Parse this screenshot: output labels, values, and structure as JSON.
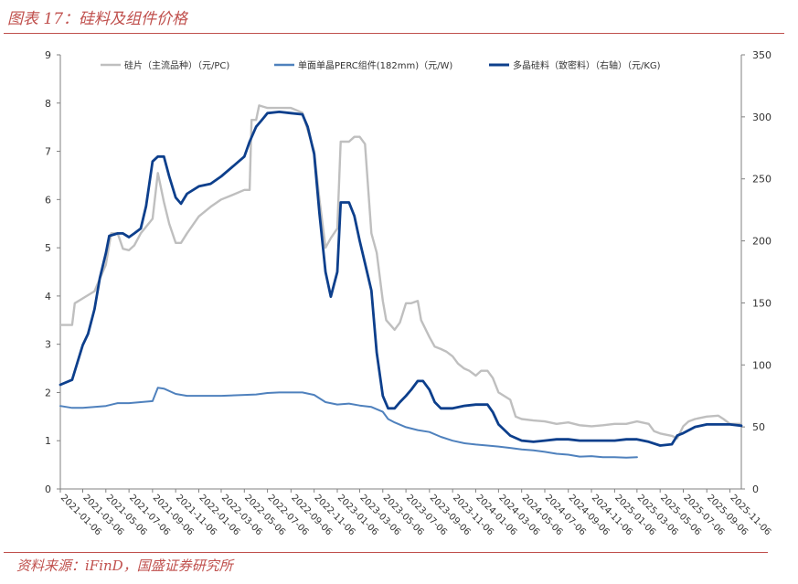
{
  "page": {
    "title": "图表 17：硅料及组件价格",
    "source": "资料来源：iFinD，国盛证券研究所"
  },
  "chart_data": {
    "type": "line",
    "y_left_ticks": [
      "0",
      "1",
      "2",
      "3",
      "4",
      "5",
      "6",
      "7",
      "8",
      "9"
    ],
    "y_right_ticks": [
      "0",
      "50",
      "100",
      "150",
      "200",
      "250",
      "300",
      "350"
    ],
    "y_left_range": [
      0,
      9
    ],
    "y_right_range": [
      0,
      350
    ],
    "x_range": [
      "2021-01-06",
      "2025-12-06"
    ],
    "x_ticks": [
      "2021-01-06",
      "2021-03-06",
      "2021-05-06",
      "2021-07-06",
      "2021-09-06",
      "2021-11-06",
      "2022-01-06",
      "2022-03-06",
      "2022-05-06",
      "2022-07-06",
      "2022-09-06",
      "2022-11-06",
      "2023-01-06",
      "2023-03-06",
      "2023-05-06",
      "2023-07-06",
      "2023-09-06",
      "2023-11-06",
      "2024-01-06",
      "2024-03-06",
      "2024-05-06",
      "2024-07-06",
      "2024-09-06",
      "2024-11-06",
      "2025-01-06",
      "2025-03-06",
      "2025-05-06",
      "2025-07-06",
      "2025-09-06",
      "2025-11-06"
    ],
    "legend_position": "top",
    "series": [
      {
        "name": "硅片（主流品种）（元/PC)",
        "axis": "left",
        "color": "#bfbfbf",
        "points": [
          [
            "2021-01-06",
            3.4
          ],
          [
            "2021-02-06",
            3.4
          ],
          [
            "2021-02-13",
            3.85
          ],
          [
            "2021-03-06",
            3.95
          ],
          [
            "2021-04-06",
            4.1
          ],
          [
            "2021-05-06",
            4.65
          ],
          [
            "2021-05-20",
            5.3
          ],
          [
            "2021-06-06",
            5.3
          ],
          [
            "2021-06-20",
            4.98
          ],
          [
            "2021-07-06",
            4.95
          ],
          [
            "2021-07-20",
            5.05
          ],
          [
            "2021-08-06",
            5.3
          ],
          [
            "2021-09-06",
            5.6
          ],
          [
            "2021-09-20",
            6.55
          ],
          [
            "2021-10-06",
            5.95
          ],
          [
            "2021-10-20",
            5.5
          ],
          [
            "2021-11-06",
            5.1
          ],
          [
            "2021-11-20",
            5.1
          ],
          [
            "2021-12-06",
            5.3
          ],
          [
            "2022-01-06",
            5.65
          ],
          [
            "2022-02-06",
            5.85
          ],
          [
            "2022-03-06",
            6.0
          ],
          [
            "2022-04-06",
            6.1
          ],
          [
            "2022-05-06",
            6.2
          ],
          [
            "2022-05-20",
            6.2
          ],
          [
            "2022-05-25",
            7.65
          ],
          [
            "2022-06-06",
            7.65
          ],
          [
            "2022-06-14",
            7.95
          ],
          [
            "2022-07-06",
            7.9
          ],
          [
            "2022-08-06",
            7.9
          ],
          [
            "2022-09-06",
            7.9
          ],
          [
            "2022-10-06",
            7.8
          ],
          [
            "2022-11-06",
            7.0
          ],
          [
            "2022-11-20",
            6.0
          ],
          [
            "2022-12-06",
            5.0
          ],
          [
            "2022-12-20",
            5.2
          ],
          [
            "2023-01-06",
            5.4
          ],
          [
            "2023-01-15",
            7.2
          ],
          [
            "2023-02-06",
            7.2
          ],
          [
            "2023-02-20",
            7.3
          ],
          [
            "2023-03-06",
            7.3
          ],
          [
            "2023-03-20",
            7.15
          ],
          [
            "2023-04-06",
            5.3
          ],
          [
            "2023-04-20",
            4.9
          ],
          [
            "2023-05-06",
            3.9
          ],
          [
            "2023-05-15",
            3.5
          ],
          [
            "2023-06-06",
            3.3
          ],
          [
            "2023-06-20",
            3.45
          ],
          [
            "2023-07-06",
            3.85
          ],
          [
            "2023-07-20",
            3.85
          ],
          [
            "2023-08-06",
            3.9
          ],
          [
            "2023-08-15",
            3.5
          ],
          [
            "2023-09-06",
            3.15
          ],
          [
            "2023-09-20",
            2.95
          ],
          [
            "2023-10-06",
            2.9
          ],
          [
            "2023-10-20",
            2.85
          ],
          [
            "2023-11-06",
            2.75
          ],
          [
            "2023-11-20",
            2.6
          ],
          [
            "2023-12-06",
            2.5
          ],
          [
            "2023-12-20",
            2.45
          ],
          [
            "2024-01-06",
            2.35
          ],
          [
            "2024-01-20",
            2.45
          ],
          [
            "2024-02-06",
            2.45
          ],
          [
            "2024-02-20",
            2.3
          ],
          [
            "2024-03-06",
            2.0
          ],
          [
            "2024-04-06",
            1.85
          ],
          [
            "2024-04-20",
            1.5
          ],
          [
            "2024-05-06",
            1.45
          ],
          [
            "2024-06-06",
            1.42
          ],
          [
            "2024-07-06",
            1.4
          ],
          [
            "2024-08-06",
            1.35
          ],
          [
            "2024-09-06",
            1.38
          ],
          [
            "2024-10-06",
            1.32
          ],
          [
            "2024-11-06",
            1.3
          ],
          [
            "2024-12-06",
            1.32
          ],
          [
            "2025-01-06",
            1.35
          ],
          [
            "2025-02-06",
            1.35
          ],
          [
            "2025-03-06",
            1.4
          ],
          [
            "2025-04-06",
            1.35
          ],
          [
            "2025-04-20",
            1.2
          ],
          [
            "2025-05-06",
            1.15
          ],
          [
            "2025-06-06",
            1.1
          ],
          [
            "2025-06-20",
            1.05
          ],
          [
            "2025-07-06",
            1.3
          ],
          [
            "2025-07-20",
            1.4
          ],
          [
            "2025-08-06",
            1.45
          ],
          [
            "2025-09-06",
            1.5
          ],
          [
            "2025-10-06",
            1.52
          ],
          [
            "2025-10-20",
            1.45
          ],
          [
            "2025-11-06",
            1.35
          ],
          [
            "2025-12-06",
            1.35
          ]
        ]
      },
      {
        "name": "单面单晶PERC组件(182mm)（元/W)",
        "axis": "left",
        "color": "#4f81bd",
        "points": [
          [
            "2021-01-06",
            1.72
          ],
          [
            "2021-02-06",
            1.68
          ],
          [
            "2021-03-06",
            1.68
          ],
          [
            "2021-04-06",
            1.7
          ],
          [
            "2021-05-06",
            1.72
          ],
          [
            "2021-06-06",
            1.78
          ],
          [
            "2021-07-06",
            1.78
          ],
          [
            "2021-08-06",
            1.8
          ],
          [
            "2021-09-06",
            1.82
          ],
          [
            "2021-09-20",
            2.1
          ],
          [
            "2021-10-06",
            2.08
          ],
          [
            "2021-11-06",
            1.97
          ],
          [
            "2021-12-06",
            1.93
          ],
          [
            "2022-01-06",
            1.93
          ],
          [
            "2022-03-06",
            1.93
          ],
          [
            "2022-05-06",
            1.95
          ],
          [
            "2022-06-06",
            1.96
          ],
          [
            "2022-07-06",
            1.99
          ],
          [
            "2022-08-06",
            2.0
          ],
          [
            "2022-09-06",
            2.0
          ],
          [
            "2022-10-06",
            2.0
          ],
          [
            "2022-11-06",
            1.95
          ],
          [
            "2022-12-06",
            1.8
          ],
          [
            "2023-01-06",
            1.75
          ],
          [
            "2023-02-06",
            1.77
          ],
          [
            "2023-03-06",
            1.73
          ],
          [
            "2023-04-06",
            1.7
          ],
          [
            "2023-05-06",
            1.6
          ],
          [
            "2023-05-20",
            1.45
          ],
          [
            "2023-06-06",
            1.38
          ],
          [
            "2023-07-06",
            1.28
          ],
          [
            "2023-08-06",
            1.22
          ],
          [
            "2023-09-06",
            1.18
          ],
          [
            "2023-10-06",
            1.08
          ],
          [
            "2023-11-06",
            1.0
          ],
          [
            "2023-12-06",
            0.95
          ],
          [
            "2024-01-06",
            0.92
          ],
          [
            "2024-02-06",
            0.9
          ],
          [
            "2024-03-06",
            0.88
          ],
          [
            "2024-04-06",
            0.85
          ],
          [
            "2024-05-06",
            0.82
          ],
          [
            "2024-06-06",
            0.8
          ],
          [
            "2024-07-06",
            0.77
          ],
          [
            "2024-08-06",
            0.73
          ],
          [
            "2024-09-06",
            0.71
          ],
          [
            "2024-10-06",
            0.67
          ],
          [
            "2024-11-06",
            0.68
          ],
          [
            "2024-12-06",
            0.66
          ],
          [
            "2025-01-06",
            0.66
          ],
          [
            "2025-02-06",
            0.65
          ],
          [
            "2025-03-06",
            0.66
          ]
        ]
      },
      {
        "name": "多晶硅料（致密料）（右轴）（元/KG)",
        "axis": "right",
        "color": "#0d3f8c",
        "points": [
          [
            "2021-01-06",
            84
          ],
          [
            "2021-02-06",
            88
          ],
          [
            "2021-02-20",
            102
          ],
          [
            "2021-03-06",
            116
          ],
          [
            "2021-03-20",
            125
          ],
          [
            "2021-04-06",
            145
          ],
          [
            "2021-04-20",
            170
          ],
          [
            "2021-05-06",
            190
          ],
          [
            "2021-05-15",
            204
          ],
          [
            "2021-06-06",
            206
          ],
          [
            "2021-06-20",
            206
          ],
          [
            "2021-07-06",
            203
          ],
          [
            "2021-07-20",
            206
          ],
          [
            "2021-08-06",
            210
          ],
          [
            "2021-08-20",
            228
          ],
          [
            "2021-09-06",
            264
          ],
          [
            "2021-09-20",
            268
          ],
          [
            "2021-10-06",
            268
          ],
          [
            "2021-10-20",
            252
          ],
          [
            "2021-11-06",
            235
          ],
          [
            "2021-11-20",
            230
          ],
          [
            "2021-12-06",
            238
          ],
          [
            "2022-01-06",
            244
          ],
          [
            "2022-02-06",
            246
          ],
          [
            "2022-03-06",
            252
          ],
          [
            "2022-04-06",
            260
          ],
          [
            "2022-05-06",
            268
          ],
          [
            "2022-05-20",
            280
          ],
          [
            "2022-06-06",
            292
          ],
          [
            "2022-06-20",
            297
          ],
          [
            "2022-07-06",
            303
          ],
          [
            "2022-08-06",
            304
          ],
          [
            "2022-09-06",
            303
          ],
          [
            "2022-10-06",
            302
          ],
          [
            "2022-10-20",
            292
          ],
          [
            "2022-11-06",
            270
          ],
          [
            "2022-11-20",
            222
          ],
          [
            "2022-12-06",
            175
          ],
          [
            "2022-12-20",
            155
          ],
          [
            "2023-01-06",
            175
          ],
          [
            "2023-01-15",
            231
          ],
          [
            "2023-02-06",
            231
          ],
          [
            "2023-02-20",
            220
          ],
          [
            "2023-03-06",
            200
          ],
          [
            "2023-03-20",
            182
          ],
          [
            "2023-04-06",
            160
          ],
          [
            "2023-04-20",
            110
          ],
          [
            "2023-05-06",
            75
          ],
          [
            "2023-05-20",
            65
          ],
          [
            "2023-06-06",
            65
          ],
          [
            "2023-06-20",
            70
          ],
          [
            "2023-07-06",
            75
          ],
          [
            "2023-07-20",
            80
          ],
          [
            "2023-08-06",
            87
          ],
          [
            "2023-08-20",
            87
          ],
          [
            "2023-09-06",
            80
          ],
          [
            "2023-09-20",
            70
          ],
          [
            "2023-10-06",
            65
          ],
          [
            "2023-11-06",
            65
          ],
          [
            "2023-12-06",
            67
          ],
          [
            "2024-01-06",
            68
          ],
          [
            "2024-02-06",
            68
          ],
          [
            "2024-02-20",
            62
          ],
          [
            "2024-03-06",
            52
          ],
          [
            "2024-04-06",
            43
          ],
          [
            "2024-05-06",
            39
          ],
          [
            "2024-06-06",
            38
          ],
          [
            "2024-07-06",
            39
          ],
          [
            "2024-08-06",
            40
          ],
          [
            "2024-09-06",
            40
          ],
          [
            "2024-10-06",
            39
          ],
          [
            "2024-11-06",
            39
          ],
          [
            "2024-12-06",
            39
          ],
          [
            "2025-01-06",
            39
          ],
          [
            "2025-02-06",
            40
          ],
          [
            "2025-03-06",
            40
          ],
          [
            "2025-04-06",
            38
          ],
          [
            "2025-05-06",
            35
          ],
          [
            "2025-06-06",
            36
          ],
          [
            "2025-06-20",
            43
          ],
          [
            "2025-07-06",
            45
          ],
          [
            "2025-08-06",
            50
          ],
          [
            "2025-09-06",
            52
          ],
          [
            "2025-10-06",
            52
          ],
          [
            "2025-11-06",
            52
          ],
          [
            "2025-12-06",
            51
          ]
        ]
      }
    ]
  }
}
